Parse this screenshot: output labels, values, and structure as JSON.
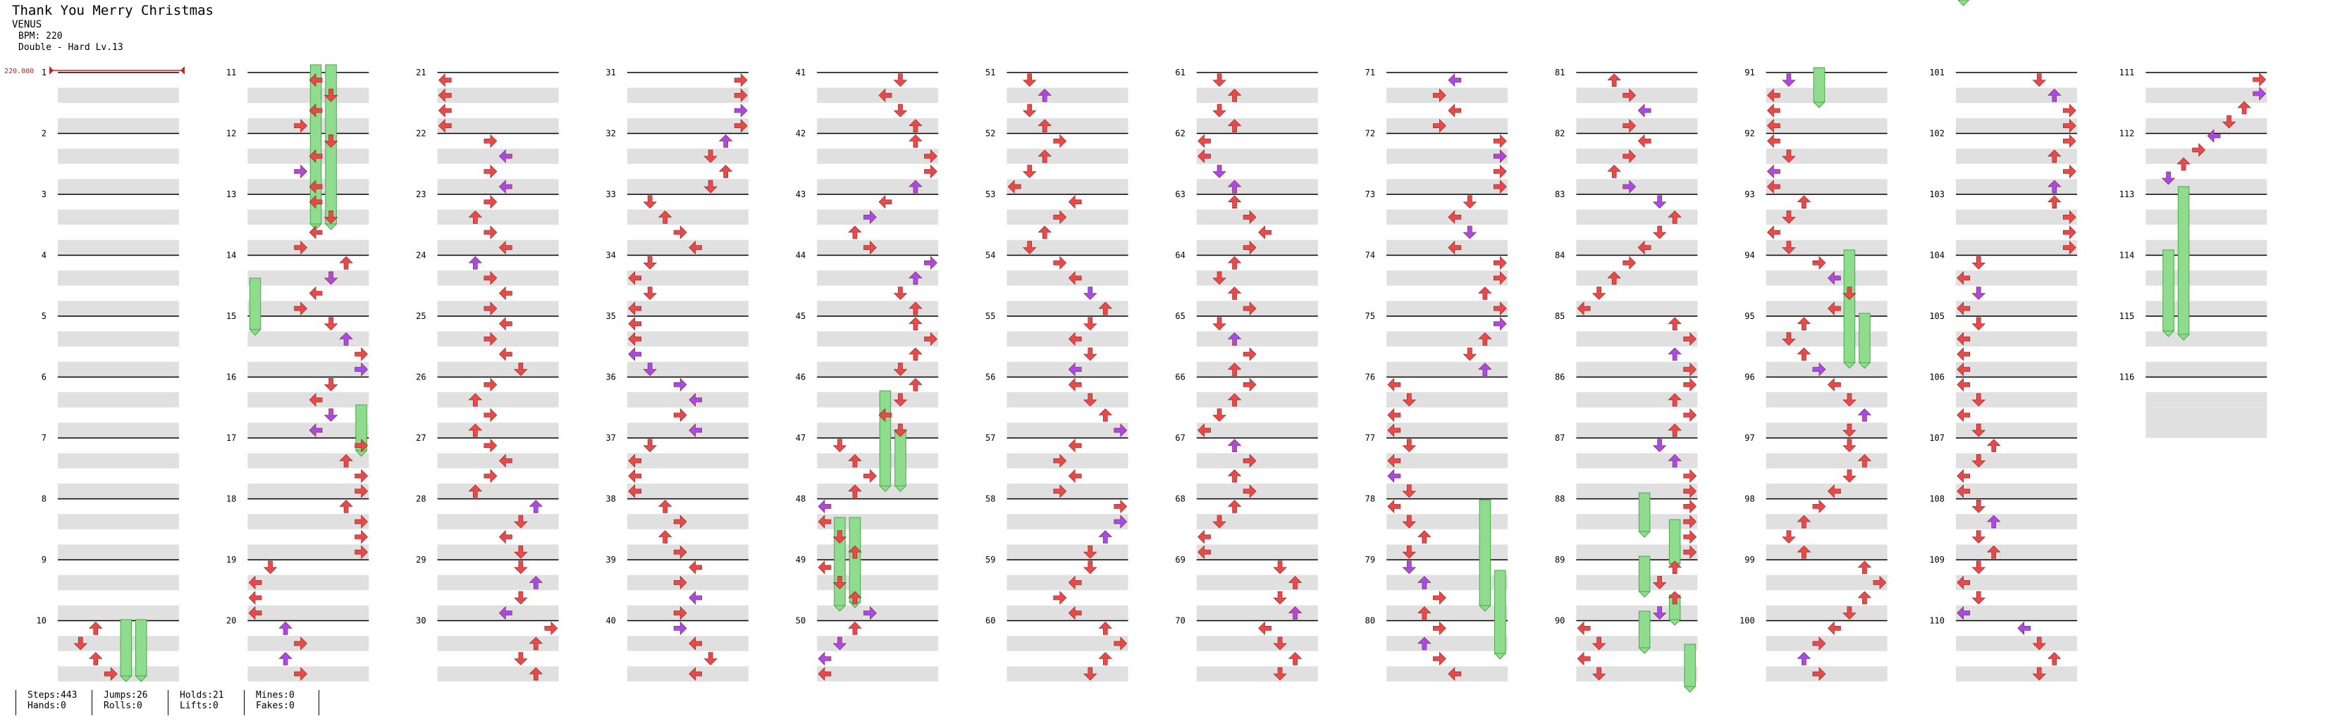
{
  "song": {
    "title": "Thank You Merry Christmas",
    "artist": "VENUS",
    "bpm_label": "BPM: 220",
    "difficulty": "Double - Hard Lv.13",
    "bpm_marker": "220.000"
  },
  "stats": [
    {
      "line1": "Steps:443",
      "line2": "Hands:0"
    },
    {
      "line1": "Jumps:26",
      "line2": "Rolls:0"
    },
    {
      "line1": "Holds:21",
      "line2": "Lifts:0"
    },
    {
      "line1": "Mines:0",
      "line2": "Fakes:0"
    }
  ],
  "colors": {
    "quarter_note": "#e84a4a",
    "eighth_note": "#a64ae8",
    "hold_body": "#8fdc8f",
    "band": "#e0e0e0"
  },
  "measure_count": 116,
  "measures_per_column": 10,
  "measure_labels": [
    "1",
    "2",
    "3",
    "4",
    "5",
    "6",
    "7",
    "8",
    "9",
    "10",
    "11",
    "12",
    "13",
    "14",
    "15",
    "16",
    "17",
    "18",
    "19",
    "20",
    "21",
    "22",
    "23",
    "24",
    "25",
    "26",
    "27",
    "28",
    "29",
    "30",
    "31",
    "32",
    "33",
    "34",
    "35",
    "36",
    "37",
    "38",
    "39",
    "40",
    "41",
    "42",
    "43",
    "44",
    "45",
    "46",
    "47",
    "48",
    "49",
    "50",
    "51",
    "52",
    "53",
    "54",
    "55",
    "56",
    "57",
    "58",
    "59",
    "60",
    "61",
    "62",
    "63",
    "64",
    "65",
    "66",
    "67",
    "68",
    "69",
    "70",
    "71",
    "72",
    "73",
    "74",
    "75",
    "76",
    "77",
    "78",
    "79",
    "80",
    "81",
    "82",
    "83",
    "84",
    "85",
    "86",
    "87",
    "88",
    "89",
    "90",
    "91",
    "92",
    "93",
    "94",
    "95",
    "96",
    "97",
    "98",
    "99",
    "100",
    "101",
    "102",
    "103",
    "104",
    "105",
    "106",
    "107",
    "108",
    "109",
    "110",
    "111",
    "112",
    "113",
    "114",
    "115",
    "116"
  ],
  "arrow_symbols": [
    "left-arrow",
    "down-arrow",
    "up-arrow",
    "right-arrow"
  ],
  "notes": [
    [
      1,
      10,
      "red",
      [
        1,
        2
      ]
    ],
    [
      2,
      11,
      "red",
      [
        2
      ]
    ],
    [
      2,
      12,
      "red",
      [
        1
      ]
    ],
    [
      2,
      13,
      "red",
      [
        3
      ]
    ],
    [
      2,
      14,
      "red",
      [
        5
      ]
    ],
    [
      2,
      15,
      "red",
      [
        6
      ]
    ],
    [
      2,
      16,
      "red",
      [
        4
      ]
    ],
    [
      2,
      17,
      "red",
      [
        5
      ]
    ],
    [
      2,
      18,
      "red",
      [
        6
      ]
    ],
    [
      2,
      19,
      "red",
      [
        4
      ]
    ],
    [
      2,
      20,
      "red",
      [
        3
      ]
    ],
    [
      3,
      21,
      "red",
      [
        1
      ]
    ],
    [
      3,
      21,
      "red",
      [
        2
      ]
    ],
    [
      3,
      22,
      "red",
      [
        0
      ]
    ],
    [
      3,
      22,
      "red",
      [
        2
      ]
    ],
    [
      3,
      23,
      "red",
      [
        3
      ]
    ],
    [
      3,
      24,
      "red",
      [
        5
      ]
    ],
    [
      3,
      25,
      "red",
      [
        4
      ]
    ],
    [
      3,
      26,
      "red",
      [
        6
      ]
    ],
    [
      3,
      27,
      "red",
      [
        4
      ]
    ],
    [
      3,
      28,
      "red",
      [
        5
      ]
    ],
    [
      3,
      29,
      "red",
      [
        6
      ]
    ],
    [
      3,
      30,
      "red",
      [
        3
      ]
    ],
    [
      4,
      31,
      "red",
      [
        1
      ]
    ],
    [
      4,
      32,
      "red",
      [
        2
      ]
    ],
    [
      4,
      33,
      "red",
      [
        4
      ]
    ],
    [
      4,
      34,
      "red",
      [
        5
      ]
    ],
    [
      4,
      35,
      "red",
      [
        6
      ]
    ],
    [
      4,
      36,
      "red",
      [
        3
      ]
    ],
    [
      4,
      37,
      "red",
      [
        1
      ]
    ],
    [
      4,
      38,
      "red",
      [
        2
      ]
    ],
    [
      4,
      39,
      "red",
      [
        4
      ]
    ],
    [
      4,
      40,
      "red",
      [
        6
      ]
    ],
    [
      5,
      41,
      "purple",
      [
        4
      ]
    ],
    [
      5,
      42,
      "red",
      [
        0
      ]
    ],
    [
      5,
      43,
      "purple",
      [
        2
      ]
    ],
    [
      5,
      44,
      "red",
      [
        5
      ]
    ],
    [
      5,
      45,
      "purple",
      [
        6
      ]
    ],
    [
      5,
      46,
      "red",
      [
        4
      ]
    ],
    [
      5,
      48,
      "red",
      [
        3
      ]
    ],
    [
      5,
      49,
      "red",
      [
        1
      ]
    ],
    [
      5,
      50,
      "red",
      [
        2
      ]
    ],
    [
      6,
      51,
      "red",
      [
        1
      ]
    ],
    [
      6,
      52,
      "red",
      [
        4
      ]
    ],
    [
      6,
      53,
      "red",
      [
        5
      ]
    ],
    [
      6,
      54,
      "red",
      [
        3
      ]
    ],
    [
      6,
      55,
      "red",
      [
        1
      ]
    ],
    [
      6,
      56,
      "red",
      [
        2
      ]
    ],
    [
      6,
      57,
      "red",
      [
        4
      ]
    ],
    [
      6,
      58,
      "red",
      [
        5
      ]
    ],
    [
      6,
      59,
      "red",
      [
        3
      ]
    ],
    [
      6,
      60,
      "red",
      [
        6
      ]
    ],
    [
      7,
      61,
      "red",
      [
        6
      ]
    ],
    [
      7,
      62,
      "red",
      [
        2
      ]
    ],
    [
      7,
      63,
      "purple",
      [
        1
      ]
    ],
    [
      7,
      64,
      "red",
      [
        3
      ]
    ],
    [
      7,
      65,
      "purple",
      [
        5
      ]
    ],
    [
      7,
      66,
      "red",
      [
        4
      ]
    ],
    [
      7,
      67,
      "purple",
      [
        1
      ]
    ],
    [
      7,
      68,
      "red",
      [
        3
      ]
    ],
    [
      7,
      69,
      "purple",
      [
        4
      ]
    ],
    [
      7,
      70,
      "red",
      [
        5
      ]
    ],
    [
      8,
      71,
      "red",
      [
        3
      ]
    ],
    [
      8,
      72,
      "purple",
      [
        1
      ]
    ],
    [
      8,
      73,
      "red",
      [
        5
      ]
    ],
    [
      8,
      74,
      "red",
      [
        6
      ]
    ],
    [
      8,
      75,
      "red",
      [
        3
      ]
    ],
    [
      8,
      76,
      "purple",
      [
        0
      ]
    ],
    [
      8,
      77,
      "purple",
      [
        3
      ]
    ],
    [
      8,
      78,
      "red",
      [
        5
      ]
    ],
    [
      8,
      79,
      "red",
      [
        6
      ]
    ],
    [
      8,
      80,
      "purple",
      [
        7
      ]
    ],
    [
      9,
      81,
      "purple",
      [
        5
      ]
    ],
    [
      9,
      81,
      "red",
      [
        7
      ]
    ],
    [
      9,
      82,
      "red",
      [
        4
      ]
    ],
    [
      9,
      83,
      "purple",
      [
        1
      ]
    ],
    [
      9,
      84,
      "red",
      [
        2
      ]
    ],
    [
      9,
      85,
      "purple",
      [
        2
      ]
    ],
    [
      9,
      86,
      "red",
      [
        4
      ]
    ],
    [
      9,
      87,
      "purple",
      [
        5
      ]
    ],
    [
      9,
      88,
      "red",
      [
        3
      ]
    ],
    [
      9,
      89,
      "purple",
      [
        4
      ]
    ],
    [
      9,
      90,
      "red",
      [
        6
      ]
    ],
    [
      10,
      91,
      "red",
      [
        4
      ]
    ],
    [
      10,
      92,
      "red",
      [
        6
      ]
    ],
    [
      10,
      93,
      "red",
      [
        1
      ]
    ],
    [
      10,
      94,
      "red",
      [
        3
      ]
    ],
    [
      10,
      95,
      "red",
      [
        5
      ]
    ],
    [
      10,
      97,
      "red",
      [
        3
      ]
    ],
    [
      10,
      98,
      "purple",
      [
        5
      ]
    ],
    [
      10,
      99,
      "red",
      [
        4
      ]
    ],
    [
      10,
      100,
      "purple",
      [
        1
      ]
    ],
    [
      11,
      101,
      "red",
      [
        3
      ]
    ],
    [
      11,
      102,
      "purple",
      [
        5
      ]
    ],
    [
      11,
      103,
      "red",
      [
        4
      ]
    ],
    [
      11,
      104,
      "purple",
      [
        1
      ]
    ],
    [
      11,
      105,
      "red",
      [
        3
      ]
    ],
    [
      11,
      106,
      "red",
      [
        6
      ]
    ],
    [
      11,
      107,
      "red",
      [
        5
      ]
    ],
    [
      11,
      108,
      "red",
      [
        2
      ]
    ],
    [
      11,
      109,
      "red",
      [
        1
      ]
    ],
    [
      11,
      110,
      "red",
      [
        4
      ]
    ],
    [
      12,
      111,
      "red",
      [
        6
      ]
    ],
    [
      12,
      112,
      "purple",
      [
        4
      ]
    ],
    [
      12,
      113,
      "red",
      [
        1
      ]
    ]
  ]
}
